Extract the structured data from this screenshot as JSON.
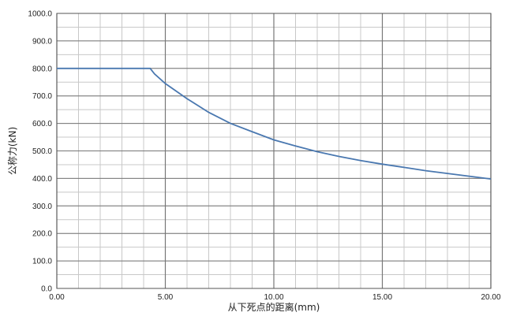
{
  "chart_data": {
    "type": "line",
    "xlabel": "从下死点的距离(mm)",
    "ylabel": "公称力(kN)",
    "xlim": [
      0,
      20
    ],
    "ylim": [
      0,
      1000
    ],
    "grid": true,
    "x_ticks": [
      "0.00",
      "5.00",
      "10.00",
      "15.00",
      "20.00"
    ],
    "y_ticks": [
      "0.0",
      "100.0",
      "200.0",
      "300.0",
      "400.0",
      "500.0",
      "600.0",
      "700.0",
      "800.0",
      "900.0",
      "1000.0"
    ],
    "colors": {
      "line": "#4a78b0",
      "major_grid": "#777777",
      "minor_grid": "#c8c8c8"
    },
    "series": [
      {
        "x": [
          0,
          1,
          2,
          3,
          4,
          4.3,
          4.5,
          5,
          6,
          7,
          8,
          9,
          10,
          11,
          12,
          13,
          14,
          15,
          16,
          17,
          18,
          19,
          20
        ],
        "values": [
          800,
          800,
          800,
          800,
          800,
          800,
          780,
          745,
          690,
          640,
          600,
          570,
          540,
          518,
          497,
          480,
          465,
          452,
          440,
          428,
          418,
          408,
          398
        ]
      }
    ]
  }
}
